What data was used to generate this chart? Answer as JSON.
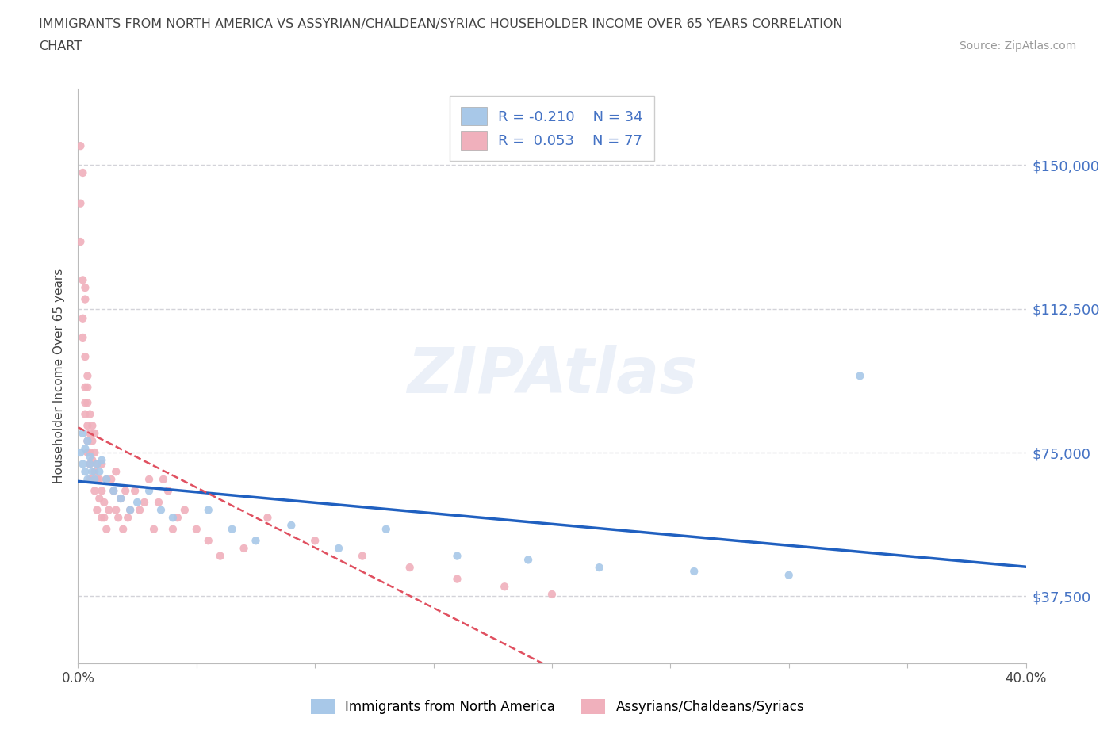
{
  "title_line1": "IMMIGRANTS FROM NORTH AMERICA VS ASSYRIAN/CHALDEAN/SYRIAC HOUSEHOLDER INCOME OVER 65 YEARS CORRELATION",
  "title_line2": "CHART",
  "source": "Source: ZipAtlas.com",
  "ylabel": "Householder Income Over 65 years",
  "xlim": [
    0.0,
    0.4
  ],
  "ylim": [
    20000,
    170000
  ],
  "yticks": [
    37500,
    75000,
    112500,
    150000
  ],
  "ytick_labels": [
    "$37,500",
    "$75,000",
    "$112,500",
    "$150,000"
  ],
  "xticks": [
    0.0,
    0.05,
    0.1,
    0.15,
    0.2,
    0.25,
    0.3,
    0.35,
    0.4
  ],
  "blue_R": -0.21,
  "blue_N": 34,
  "pink_R": 0.053,
  "pink_N": 77,
  "blue_color": "#a8c8e8",
  "pink_color": "#f0b0bc",
  "blue_line_color": "#2060c0",
  "pink_line_color": "#e05060",
  "legend_blue_label": "Immigrants from North America",
  "legend_pink_label": "Assyrians/Chaldeans/Syriacs",
  "watermark": "ZIPAtlas",
  "background_color": "#ffffff",
  "grid_color": "#c8c8d0",
  "title_color": "#444444",
  "raxis_color": "#4472c4",
  "blue_x": [
    0.001,
    0.002,
    0.002,
    0.003,
    0.003,
    0.004,
    0.004,
    0.005,
    0.005,
    0.006,
    0.007,
    0.008,
    0.009,
    0.01,
    0.012,
    0.015,
    0.018,
    0.022,
    0.025,
    0.03,
    0.035,
    0.04,
    0.055,
    0.065,
    0.075,
    0.09,
    0.11,
    0.13,
    0.16,
    0.19,
    0.22,
    0.26,
    0.3,
    0.33
  ],
  "blue_y": [
    75000,
    72000,
    80000,
    70000,
    76000,
    68000,
    78000,
    72000,
    74000,
    70000,
    68000,
    72000,
    70000,
    73000,
    68000,
    65000,
    63000,
    60000,
    62000,
    65000,
    60000,
    58000,
    60000,
    55000,
    52000,
    56000,
    50000,
    55000,
    48000,
    47000,
    45000,
    44000,
    43000,
    95000
  ],
  "pink_x": [
    0.001,
    0.001,
    0.001,
    0.002,
    0.002,
    0.002,
    0.002,
    0.003,
    0.003,
    0.003,
    0.003,
    0.003,
    0.003,
    0.004,
    0.004,
    0.004,
    0.004,
    0.004,
    0.004,
    0.005,
    0.005,
    0.005,
    0.005,
    0.005,
    0.006,
    0.006,
    0.006,
    0.006,
    0.007,
    0.007,
    0.007,
    0.007,
    0.008,
    0.008,
    0.008,
    0.009,
    0.009,
    0.01,
    0.01,
    0.01,
    0.011,
    0.011,
    0.012,
    0.012,
    0.013,
    0.014,
    0.015,
    0.016,
    0.016,
    0.017,
    0.018,
    0.019,
    0.02,
    0.021,
    0.022,
    0.024,
    0.026,
    0.028,
    0.03,
    0.032,
    0.034,
    0.036,
    0.038,
    0.04,
    0.042,
    0.045,
    0.05,
    0.055,
    0.06,
    0.07,
    0.08,
    0.1,
    0.12,
    0.14,
    0.16,
    0.18,
    0.2
  ],
  "pink_y": [
    155000,
    140000,
    130000,
    148000,
    120000,
    110000,
    105000,
    115000,
    100000,
    92000,
    88000,
    85000,
    118000,
    95000,
    88000,
    82000,
    78000,
    92000,
    75000,
    80000,
    75000,
    72000,
    85000,
    68000,
    78000,
    73000,
    68000,
    82000,
    75000,
    70000,
    65000,
    80000,
    72000,
    68000,
    60000,
    68000,
    63000,
    72000,
    65000,
    58000,
    62000,
    58000,
    68000,
    55000,
    60000,
    68000,
    65000,
    70000,
    60000,
    58000,
    63000,
    55000,
    65000,
    58000,
    60000,
    65000,
    60000,
    62000,
    68000,
    55000,
    62000,
    68000,
    65000,
    55000,
    58000,
    60000,
    55000,
    52000,
    48000,
    50000,
    58000,
    52000,
    48000,
    45000,
    42000,
    40000,
    38000
  ]
}
